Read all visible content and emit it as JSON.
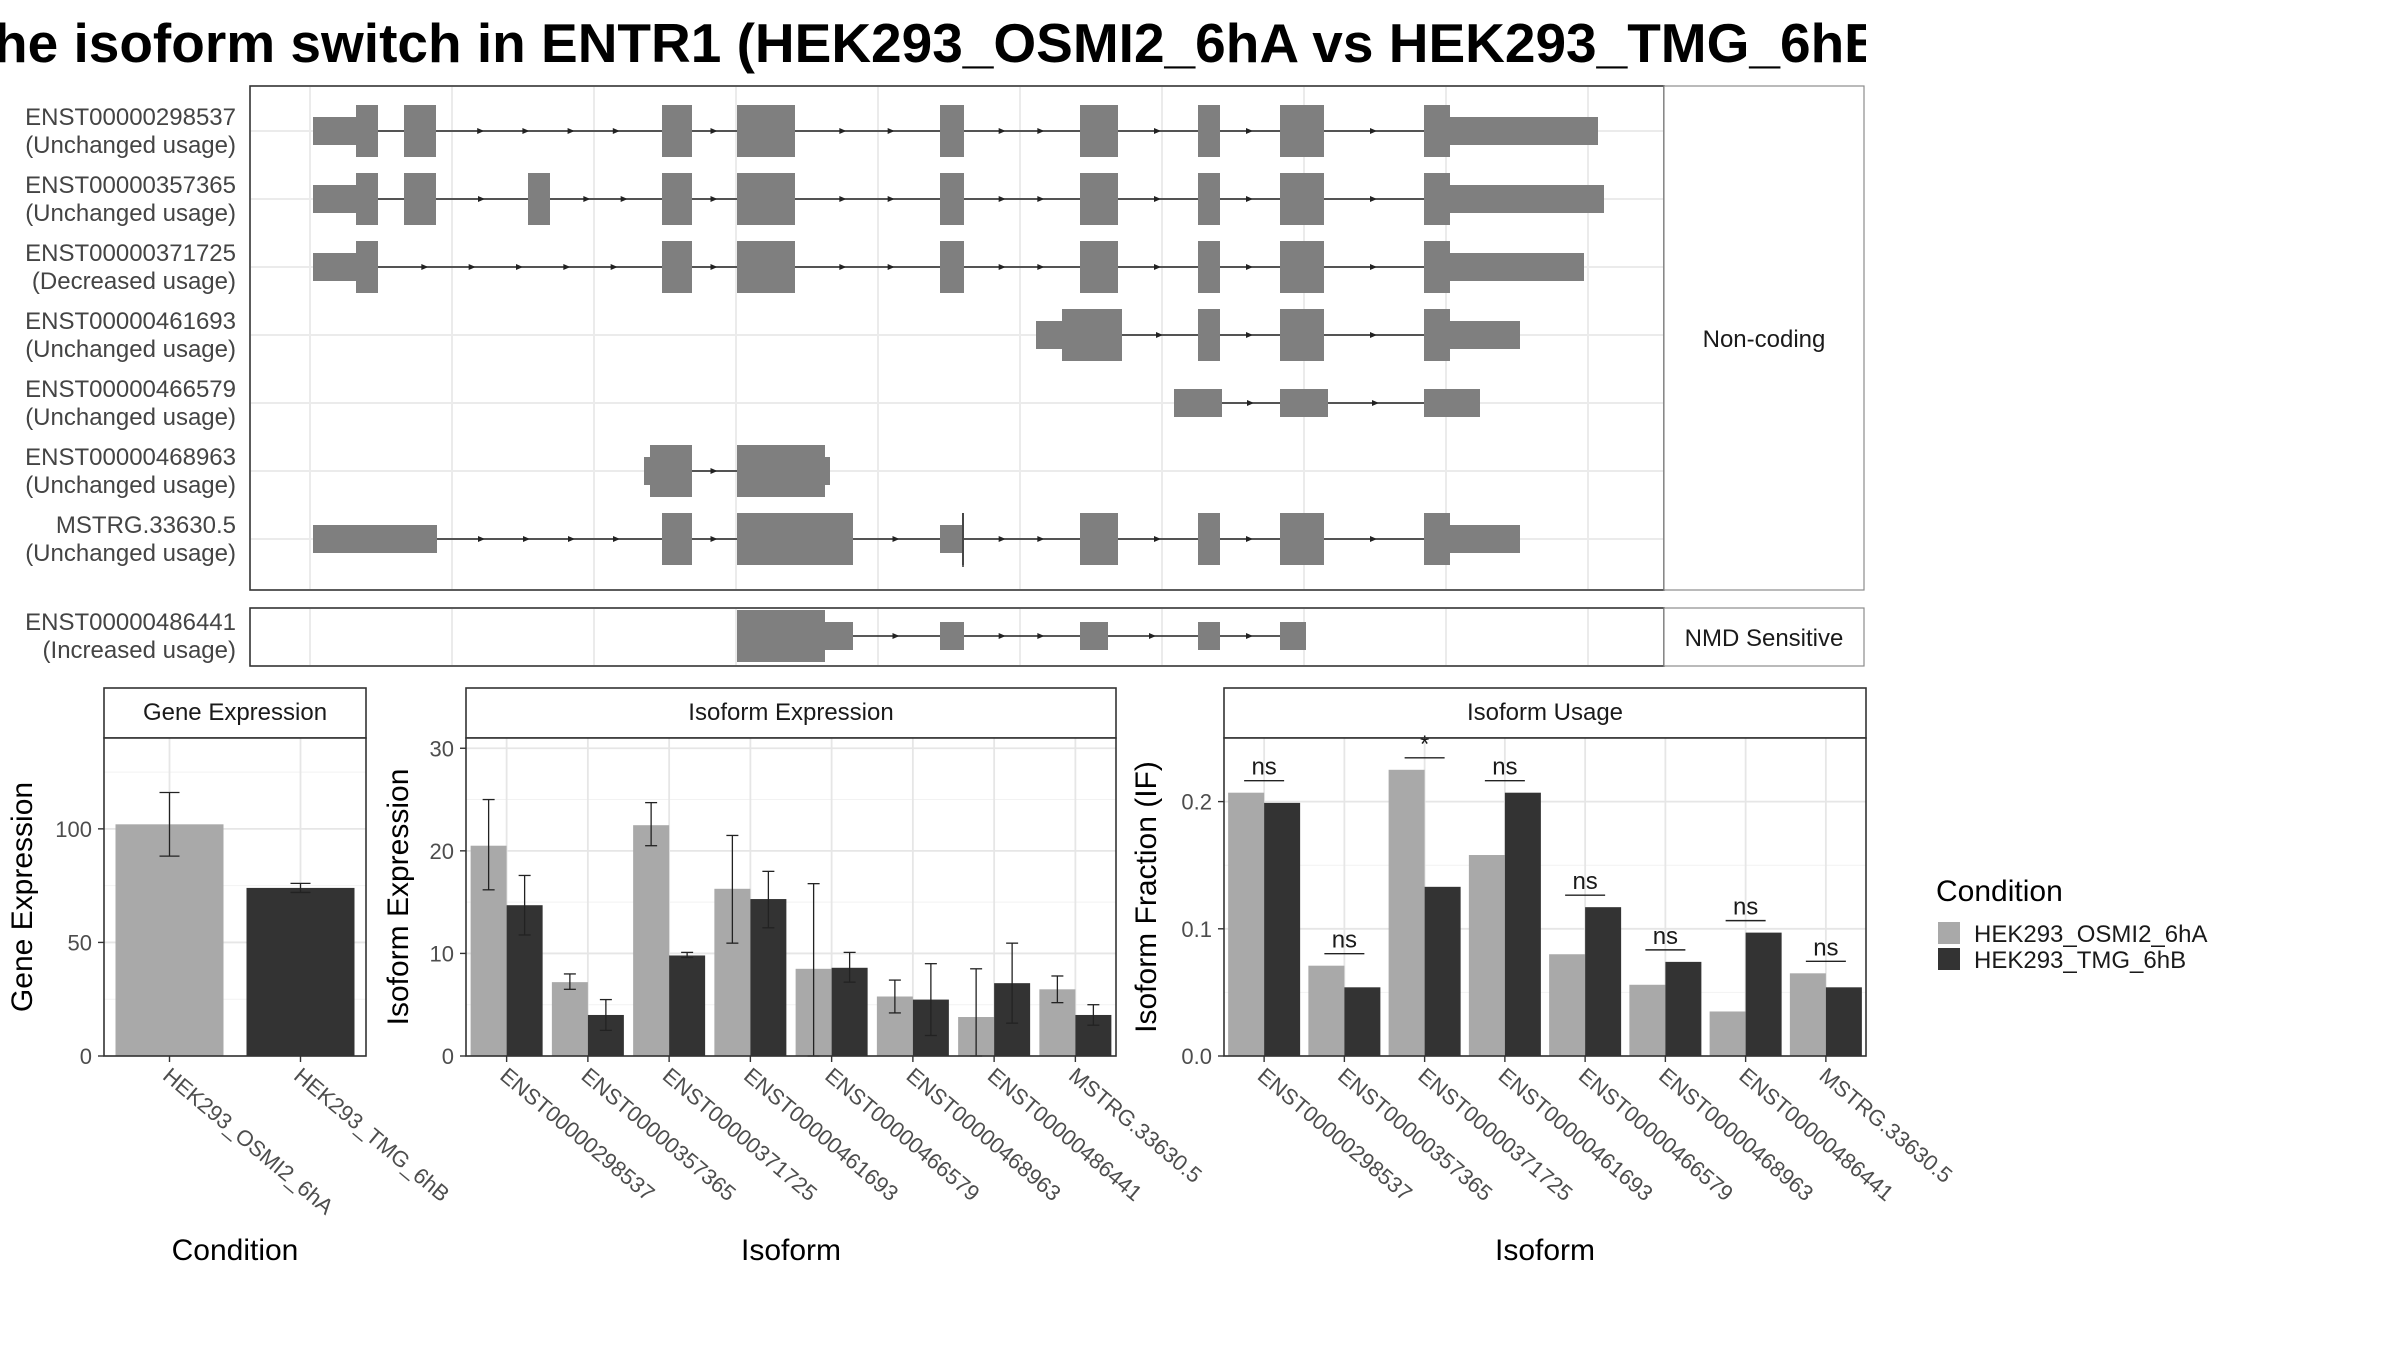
{
  "title": "he isoform switch in ENTR1 (HEK293_OSMI2_6hA vs HEK293_TMG_6hB",
  "colors": {
    "cond_a": "#a9a9a9",
    "cond_b": "#333333",
    "exon": "#7f7f7f"
  },
  "structure": {
    "sections": [
      {
        "label": "Non-coding",
        "transcripts": [
          {
            "id": "ENST00000298537",
            "usage": "(Unchanged usage)",
            "exons": [
              [
                200,
                230,
                "s"
              ],
              [
                230,
                235,
                "t"
              ],
              [
                235,
                238,
                "t"
              ],
              [
                238,
                260,
                "t"
              ],
              [
                260,
                261,
                "t"
              ],
              [
                345,
                362,
                "t"
              ],
              [
                370,
                398,
                "t"
              ],
              [
                500,
                510,
                "t"
              ],
              [
                550,
                570,
                "t"
              ],
              [
                593,
                610,
                "t"
              ],
              [
                625,
                655,
                "t"
              ],
              [
                640,
                660,
                "s"
              ]
            ]
          },
          {
            "id": "ENST00000357365",
            "usage": "(Unchanged usage)",
            "exons": [
              [
                200,
                228,
                "s"
              ],
              [
                230,
                238,
                "t"
              ],
              [
                260,
                262,
                "t"
              ],
              [
                345,
                362,
                "t"
              ],
              [
                370,
                398,
                "t"
              ],
              [
                500,
                510,
                "t"
              ],
              [
                550,
                570,
                "t"
              ],
              [
                593,
                610,
                "t"
              ],
              [
                625,
                655,
                "t"
              ],
              [
                640,
                662,
                "s"
              ]
            ]
          }
        ]
      }
    ]
  },
  "structure_rows": [
    {
      "id": "ENST00000298537",
      "usage": "(Unchanged usage)"
    },
    {
      "id": "ENST00000357365",
      "usage": "(Unchanged usage)"
    },
    {
      "id": "ENST00000371725",
      "usage": "(Decreased usage)"
    },
    {
      "id": "ENST00000461693",
      "usage": "(Unchanged usage)"
    },
    {
      "id": "ENST00000466579",
      "usage": "(Unchanged usage)"
    },
    {
      "id": "ENST00000468963",
      "usage": "(Unchanged usage)"
    },
    {
      "id": "MSTRG.33630.5",
      "usage": "(Unchanged usage)"
    },
    {
      "id": "ENST00000486441",
      "usage": "(Increased usage)"
    }
  ],
  "strip_labels": {
    "non_coding": "Non-coding",
    "nmd": "NMD Sensitive"
  },
  "chart_data": [
    {
      "type": "bar",
      "title": "Gene Expression",
      "xlabel": "Condition",
      "ylabel": "Gene Expression",
      "categories": [
        "HEK293_OSMI2_6hA",
        "HEK293_TMG_6hB"
      ],
      "values": [
        102,
        74
      ],
      "error_bars": [
        [
          88,
          116
        ],
        [
          72,
          76
        ]
      ],
      "ylim": [
        0,
        140
      ],
      "yticks": [
        0,
        50,
        100
      ]
    },
    {
      "type": "bar",
      "title": "Isoform Expression",
      "xlabel": "Isoform",
      "ylabel": "Isoform Expression",
      "categories": [
        "ENST00000298537",
        "ENST00000357365",
        "ENST00000371725",
        "ENST00000461693",
        "ENST00000466579",
        "ENST00000468963",
        "ENST00000486441",
        "MSTRG.33630.5"
      ],
      "series": [
        {
          "name": "HEK293_OSMI2_6hA",
          "values": [
            20.5,
            7.2,
            22.5,
            16.3,
            8.5,
            5.8,
            3.8,
            6.5
          ],
          "error_bars": [
            [
              16.2,
              25
            ],
            [
              6.5,
              8
            ],
            [
              20.5,
              24.7
            ],
            [
              11,
              21.5
            ],
            [
              0,
              16.8
            ],
            [
              4.2,
              7.4
            ],
            [
              0,
              8.5
            ],
            [
              5.2,
              7.8
            ]
          ]
        },
        {
          "name": "HEK293_TMG_6hB",
          "values": [
            14.7,
            4.0,
            9.8,
            15.3,
            8.6,
            5.5,
            7.1,
            4.0
          ],
          "error_bars": [
            [
              11.8,
              17.6
            ],
            [
              2.5,
              5.5
            ],
            [
              9.6,
              10.1
            ],
            [
              12.5,
              18
            ],
            [
              7.2,
              10.1
            ],
            [
              2,
              9
            ],
            [
              3.2,
              11
            ],
            [
              3,
              5
            ]
          ]
        }
      ],
      "ylim": [
        0,
        31
      ],
      "yticks": [
        0,
        10,
        20,
        30
      ]
    },
    {
      "type": "bar",
      "title": "Isoform Usage",
      "xlabel": "Isoform",
      "ylabel": "Isoform Fraction (IF)",
      "categories": [
        "ENST00000298537",
        "ENST00000357365",
        "ENST00000371725",
        "ENST00000461693",
        "ENST00000466579",
        "ENST00000468963",
        "ENST00000486441",
        "MSTRG.33630.5"
      ],
      "series": [
        {
          "name": "HEK293_OSMI2_6hA",
          "values": [
            0.207,
            0.071,
            0.225,
            0.158,
            0.08,
            0.056,
            0.035,
            0.065
          ]
        },
        {
          "name": "HEK293_TMG_6hB",
          "values": [
            0.199,
            0.054,
            0.133,
            0.207,
            0.117,
            0.074,
            0.097,
            0.054
          ]
        }
      ],
      "significance": [
        "ns",
        "ns",
        "*",
        "ns",
        "ns",
        "ns",
        "ns",
        "ns"
      ],
      "ylim": [
        0,
        0.25
      ],
      "yticks": [
        0.0,
        0.1,
        0.2
      ]
    }
  ],
  "legend": {
    "title": "Condition",
    "entries": [
      "HEK293_OSMI2_6hA",
      "HEK293_TMG_6hB"
    ]
  }
}
